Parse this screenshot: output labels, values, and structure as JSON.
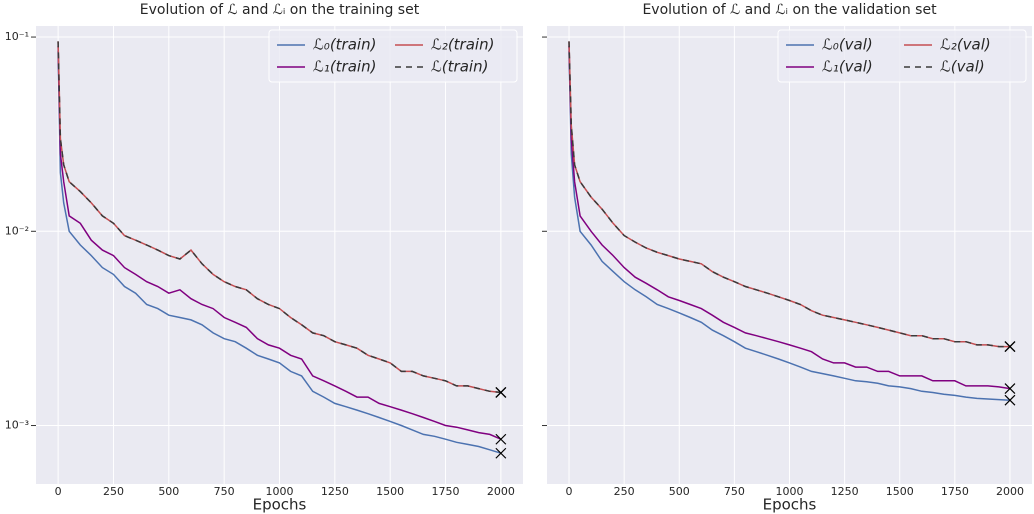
{
  "chart_data": [
    {
      "type": "line",
      "title": "Evolution of ℒ and ℒᵢ on the training set",
      "xlabel": "Epochs",
      "x": [
        0,
        10,
        25,
        50,
        100,
        150,
        200,
        250,
        300,
        350,
        400,
        450,
        500,
        550,
        600,
        650,
        700,
        750,
        800,
        850,
        900,
        950,
        1000,
        1050,
        1100,
        1150,
        1200,
        1250,
        1300,
        1350,
        1400,
        1450,
        1500,
        1550,
        1600,
        1650,
        1700,
        1750,
        1800,
        1850,
        1900,
        1950,
        2000
      ],
      "xlim": [
        -100,
        2100
      ],
      "xticks": [
        0,
        250,
        500,
        750,
        1000,
        1250,
        1500,
        1750,
        2000
      ],
      "ylim": [
        0.0005,
        0.114
      ],
      "log_y": true,
      "grid": true,
      "legend": "upper right",
      "legend_columns": 2,
      "yticks": [
        {
          "value": 0.1,
          "label": "10⁻¹"
        },
        {
          "value": 0.01,
          "label": "10⁻²"
        },
        {
          "value": 0.001,
          "label": "10⁻³"
        }
      ],
      "series": [
        {
          "name": "ℒ₀(train)",
          "color": "#4c72b0",
          "dash": false,
          "final": 0.00072,
          "values": [
            0.085,
            0.02,
            0.014,
            0.01,
            0.0085,
            0.0075,
            0.0065,
            0.006,
            0.0052,
            0.0048,
            0.0042,
            0.004,
            0.0037,
            0.0036,
            0.0035,
            0.0033,
            0.003,
            0.0028,
            0.0027,
            0.0025,
            0.0023,
            0.0022,
            0.0021,
            0.0019,
            0.0018,
            0.0015,
            0.0014,
            0.0013,
            0.00125,
            0.0012,
            0.00115,
            0.0011,
            0.00105,
            0.001,
            0.00095,
            0.0009,
            0.00088,
            0.00085,
            0.00082,
            0.0008,
            0.00078,
            0.00075,
            0.00072
          ]
        },
        {
          "name": "ℒ₁(train)",
          "color": "#800080",
          "dash": false,
          "final": 0.00085,
          "values": [
            0.09,
            0.025,
            0.018,
            0.012,
            0.011,
            0.009,
            0.008,
            0.0075,
            0.0065,
            0.006,
            0.0055,
            0.0052,
            0.0048,
            0.005,
            0.0045,
            0.0042,
            0.004,
            0.0036,
            0.0034,
            0.0032,
            0.0028,
            0.0026,
            0.0025,
            0.0023,
            0.0022,
            0.0018,
            0.0017,
            0.0016,
            0.0015,
            0.0014,
            0.0014,
            0.0013,
            0.00125,
            0.0012,
            0.00115,
            0.0011,
            0.00105,
            0.001,
            0.00098,
            0.00095,
            0.00092,
            0.0009,
            0.00085
          ]
        },
        {
          "name": "ℒ₂(train)",
          "color": "#c44e52",
          "dash": false,
          "final": 0.00148,
          "values": [
            0.095,
            0.03,
            0.022,
            0.018,
            0.016,
            0.014,
            0.012,
            0.011,
            0.0095,
            0.009,
            0.0085,
            0.008,
            0.0075,
            0.0072,
            0.008,
            0.0068,
            0.006,
            0.0055,
            0.0052,
            0.005,
            0.0045,
            0.0042,
            0.004,
            0.0036,
            0.0033,
            0.003,
            0.0029,
            0.0027,
            0.0026,
            0.0025,
            0.0023,
            0.0022,
            0.0021,
            0.0019,
            0.0019,
            0.0018,
            0.00175,
            0.0017,
            0.0016,
            0.0016,
            0.00155,
            0.0015,
            0.00148
          ]
        },
        {
          "name": "ℒ(train)",
          "color": "#3a3a3a",
          "dash": true,
          "final": 0.00148,
          "values": [
            0.095,
            0.03,
            0.022,
            0.018,
            0.016,
            0.014,
            0.012,
            0.011,
            0.0095,
            0.009,
            0.0085,
            0.008,
            0.0075,
            0.0072,
            0.008,
            0.0068,
            0.006,
            0.0055,
            0.0052,
            0.005,
            0.0045,
            0.0042,
            0.004,
            0.0036,
            0.0033,
            0.003,
            0.0029,
            0.0027,
            0.0026,
            0.0025,
            0.0023,
            0.0022,
            0.0021,
            0.0019,
            0.0019,
            0.0018,
            0.00175,
            0.0017,
            0.0016,
            0.0016,
            0.00155,
            0.0015,
            0.00148
          ]
        }
      ]
    },
    {
      "type": "line",
      "title": "Evolution of ℒ and ℒᵢ on the validation set",
      "xlabel": "Epochs",
      "x": [
        0,
        10,
        25,
        50,
        100,
        150,
        200,
        250,
        300,
        350,
        400,
        450,
        500,
        550,
        600,
        650,
        700,
        750,
        800,
        850,
        900,
        950,
        1000,
        1050,
        1100,
        1150,
        1200,
        1250,
        1300,
        1350,
        1400,
        1450,
        1500,
        1550,
        1600,
        1650,
        1700,
        1750,
        1800,
        1850,
        1900,
        1950,
        2000
      ],
      "xlim": [
        -100,
        2100
      ],
      "xticks": [
        0,
        250,
        500,
        750,
        1000,
        1250,
        1500,
        1750,
        2000
      ],
      "ylim": [
        0.0005,
        0.114
      ],
      "log_y": true,
      "grid": true,
      "legend": "upper right",
      "legend_columns": 2,
      "yticks": [
        0.1,
        0.01,
        0.001
      ],
      "ytick_labels_shown": false,
      "series": [
        {
          "name": "ℒ₀(val)",
          "color": "#4c72b0",
          "dash": false,
          "final": 0.00135,
          "values": [
            0.085,
            0.025,
            0.015,
            0.01,
            0.0085,
            0.007,
            0.0062,
            0.0055,
            0.005,
            0.0046,
            0.0042,
            0.004,
            0.0038,
            0.0036,
            0.0034,
            0.0031,
            0.0029,
            0.0027,
            0.0025,
            0.0024,
            0.0023,
            0.0022,
            0.0021,
            0.002,
            0.0019,
            0.00185,
            0.0018,
            0.00175,
            0.0017,
            0.00168,
            0.00165,
            0.0016,
            0.00158,
            0.00155,
            0.0015,
            0.00148,
            0.00145,
            0.00143,
            0.0014,
            0.00138,
            0.00137,
            0.00136,
            0.00135
          ]
        },
        {
          "name": "ℒ₁(val)",
          "color": "#800080",
          "dash": false,
          "final": 0.00155,
          "values": [
            0.09,
            0.03,
            0.018,
            0.012,
            0.01,
            0.0085,
            0.0075,
            0.0065,
            0.0058,
            0.0054,
            0.005,
            0.0046,
            0.0044,
            0.0042,
            0.004,
            0.0037,
            0.0034,
            0.0032,
            0.003,
            0.0029,
            0.0028,
            0.0027,
            0.0026,
            0.0025,
            0.0024,
            0.0022,
            0.0021,
            0.0021,
            0.002,
            0.002,
            0.0019,
            0.0019,
            0.0018,
            0.0018,
            0.0018,
            0.0017,
            0.0017,
            0.0017,
            0.0016,
            0.0016,
            0.0016,
            0.00158,
            0.00155
          ]
        },
        {
          "name": "ℒ₂(val)",
          "color": "#c44e52",
          "dash": false,
          "final": 0.00255,
          "values": [
            0.095,
            0.035,
            0.022,
            0.018,
            0.015,
            0.013,
            0.011,
            0.0095,
            0.0088,
            0.0082,
            0.0078,
            0.0075,
            0.0072,
            0.007,
            0.0068,
            0.0062,
            0.0058,
            0.0055,
            0.0052,
            0.005,
            0.0048,
            0.0046,
            0.0044,
            0.0042,
            0.0039,
            0.0037,
            0.0036,
            0.0035,
            0.0034,
            0.0033,
            0.0032,
            0.0031,
            0.003,
            0.0029,
            0.0029,
            0.0028,
            0.0028,
            0.0027,
            0.0027,
            0.0026,
            0.0026,
            0.00255,
            0.00255
          ]
        },
        {
          "name": "ℒ(val)",
          "color": "#3a3a3a",
          "dash": true,
          "final": 0.00255,
          "values": [
            0.095,
            0.035,
            0.022,
            0.018,
            0.015,
            0.013,
            0.011,
            0.0095,
            0.0088,
            0.0082,
            0.0078,
            0.0075,
            0.0072,
            0.007,
            0.0068,
            0.0062,
            0.0058,
            0.0055,
            0.0052,
            0.005,
            0.0048,
            0.0046,
            0.0044,
            0.0042,
            0.0039,
            0.0037,
            0.0036,
            0.0035,
            0.0034,
            0.0033,
            0.0032,
            0.0031,
            0.003,
            0.0029,
            0.0029,
            0.0028,
            0.0028,
            0.0027,
            0.0027,
            0.0026,
            0.0026,
            0.00255,
            0.00255
          ]
        }
      ]
    }
  ]
}
